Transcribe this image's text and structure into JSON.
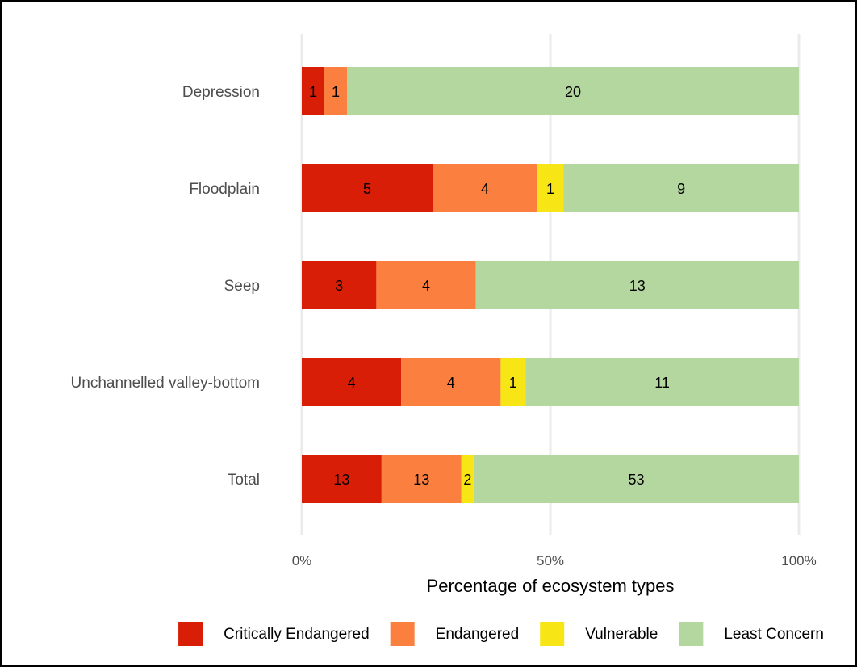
{
  "chart_data": {
    "type": "bar",
    "orientation": "horizontal",
    "stacked": "percent",
    "title": "",
    "xlabel": "Percentage of ecosystem types",
    "ylabel": "",
    "xlim": [
      0,
      100
    ],
    "x_ticks": [
      "0%",
      "50%",
      "100%"
    ],
    "categories": [
      "Depression",
      "Floodplain",
      "Seep",
      "Unchannelled valley-bottom",
      "Total"
    ],
    "series": [
      {
        "name": "Critically Endangered",
        "color": "#d81e06",
        "values": [
          1,
          5,
          3,
          4,
          13
        ]
      },
      {
        "name": "Endangered",
        "color": "#fb7f3f",
        "values": [
          1,
          4,
          4,
          4,
          13
        ]
      },
      {
        "name": "Vulnerable",
        "color": "#f8e516",
        "values": [
          0,
          1,
          0,
          1,
          2
        ]
      },
      {
        "name": "Least Concern",
        "color": "#b4d79f",
        "values": [
          20,
          9,
          13,
          11,
          53
        ]
      }
    ],
    "grid": "vertical major",
    "legend": "bottom"
  }
}
